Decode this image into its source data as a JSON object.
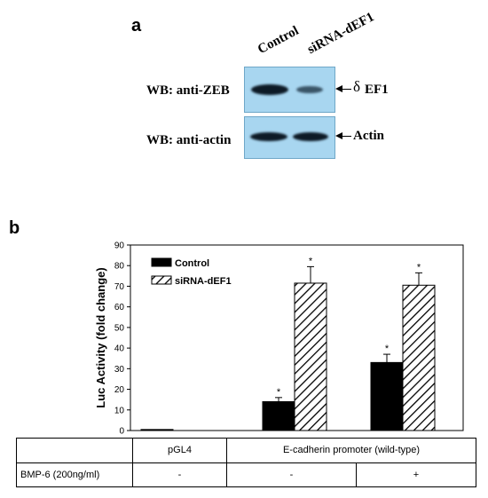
{
  "panel_a": {
    "letter": "a",
    "lanes": [
      "Control",
      "siRNA-dEF1"
    ],
    "rows": [
      {
        "label": "WB: anti-ZEB",
        "marker": "δ",
        "target": "EF1"
      },
      {
        "label": "WB: anti-actin",
        "marker": "",
        "target": "Actin"
      }
    ]
  },
  "panel_b": {
    "letter": "b",
    "conditions": {
      "row_label": "BMP-6 (200ng/ml)",
      "group_pgl4": "pGL4",
      "group_ecad": "E-cadherin promoter (wild-type)",
      "bmp_values": [
        "-",
        "-",
        "+"
      ]
    }
  },
  "chart_data": {
    "type": "bar",
    "ylabel": "Luc Activity (fold change)",
    "ylim": [
      0,
      90
    ],
    "yticks": [
      0,
      10,
      20,
      30,
      40,
      50,
      60,
      70,
      80,
      90
    ],
    "categories": [
      "pGL4",
      "E-cadherin promoter (wild-type), BMP-6 -",
      "E-cadherin promoter (wild-type), BMP-6 +"
    ],
    "series": [
      {
        "name": "Control",
        "color": "#000000",
        "pattern": "solid",
        "values": [
          0.5,
          14,
          33
        ],
        "errors": [
          0,
          2,
          4
        ],
        "significance": [
          "",
          "*",
          "*"
        ]
      },
      {
        "name": "siRNA-dEF1",
        "color": "#000000",
        "pattern": "diagonal-hatch",
        "values": [
          0,
          71.5,
          70.5
        ],
        "errors": [
          0,
          8,
          6
        ],
        "significance": [
          "",
          "*",
          "*"
        ]
      }
    ],
    "legend_position": "top-left",
    "grid": false
  }
}
